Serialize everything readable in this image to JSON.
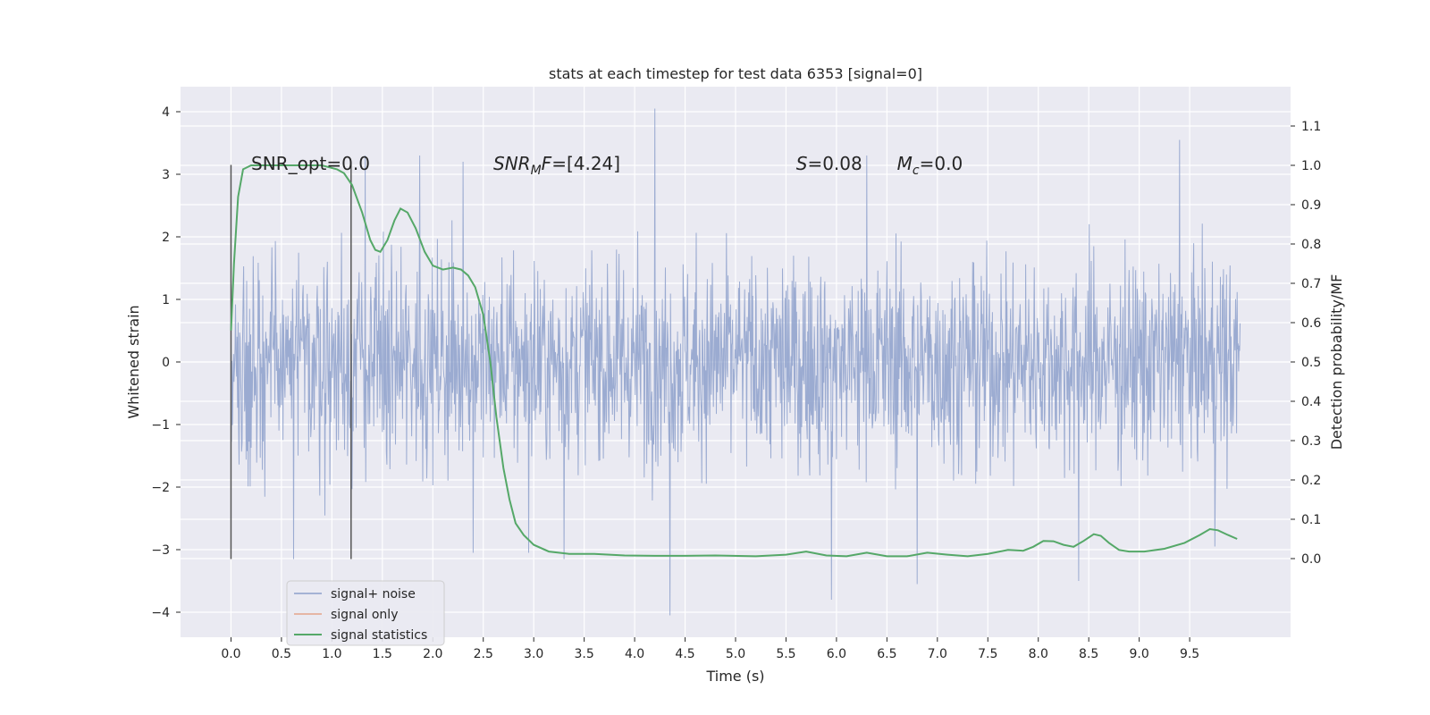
{
  "chart_data": {
    "type": "line",
    "title": "stats at each timestep for test data 6353 [signal=0]",
    "xlabel": "Time (s)",
    "ylabel": "Whitened strain",
    "y2label": "Detection probability/MF",
    "xlim": [
      -0.5,
      10.5
    ],
    "ylim": [
      -4.4,
      4.4
    ],
    "y2lim": [
      -0.2,
      1.2
    ],
    "x_ticks": [
      0.0,
      0.5,
      1.0,
      1.5,
      2.0,
      2.5,
      3.0,
      3.5,
      4.0,
      4.5,
      5.0,
      5.5,
      6.0,
      6.5,
      7.0,
      7.5,
      8.0,
      8.5,
      9.0,
      9.5
    ],
    "x_tick_labels": [
      "0.0",
      "0.5",
      "1.0",
      "1.5",
      "2.0",
      "2.5",
      "3.0",
      "3.5",
      "4.0",
      "4.5",
      "5.0",
      "5.5",
      "6.0",
      "6.5",
      "7.0",
      "7.5",
      "8.0",
      "8.5",
      "9.0",
      "9.5"
    ],
    "y_ticks": [
      4,
      3,
      2,
      1,
      0,
      -1,
      -2,
      -3,
      -4
    ],
    "y_tick_labels": [
      "4",
      "3",
      "2",
      "1",
      "0",
      "−1",
      "−2",
      "−3",
      "−4"
    ],
    "y2_ticks": [
      1.1,
      1.0,
      0.9,
      0.8,
      0.7,
      0.6,
      0.5,
      0.4,
      0.3,
      0.2,
      0.1,
      0.0
    ],
    "y2_tick_labels": [
      "1.1",
      "1.0",
      "0.9",
      "0.8",
      "0.7",
      "0.6",
      "0.5",
      "0.4",
      "0.3",
      "0.2",
      "0.1",
      "0.0"
    ],
    "grid": true,
    "legend_position": "lower-left",
    "legend": [
      {
        "name": "signal+ noise",
        "color": "#8da0cb"
      },
      {
        "name": "signal only",
        "color": "#e5a58a"
      },
      {
        "name": "signal statistics",
        "color": "#55a868"
      }
    ],
    "annotations": [
      {
        "parts": [
          {
            "text": "SNR_opt=0.0",
            "italic": false
          }
        ],
        "x": 0.2,
        "y": 3.2
      },
      {
        "parts": [
          {
            "text": "SNR",
            "italic": true
          },
          {
            "text": "M",
            "italic": true,
            "sub": true
          },
          {
            "text": "F",
            "italic": true
          },
          {
            "text": "=[4.24]",
            "italic": false
          }
        ],
        "x": 2.6,
        "y": 3.2
      },
      {
        "parts": [
          {
            "text": "S",
            "italic": true
          },
          {
            "text": "=0.08",
            "italic": false
          }
        ],
        "x": 5.6,
        "y": 3.2
      },
      {
        "parts": [
          {
            "text": "M",
            "italic": true
          },
          {
            "text": "c",
            "italic": true,
            "sub": true
          },
          {
            "text": "=0.0",
            "italic": false
          }
        ],
        "x": 6.6,
        "y": 3.2
      }
    ],
    "vlines": [
      {
        "x": 0.0,
        "ymin": -3.15,
        "ymax": 3.15
      },
      {
        "x": 1.19,
        "ymin": -3.15,
        "ymax": 3.15
      }
    ],
    "series": [
      {
        "name": "signal+ noise",
        "color": "#8da0cb",
        "x_range": [
          0.0,
          10.0
        ],
        "band_typical": [
          -1.3,
          1.3
        ],
        "extremes": [
          {
            "x": 0.62,
            "y": -3.15
          },
          {
            "x": 1.33,
            "y": 3.3
          },
          {
            "x": 1.87,
            "y": 3.3
          },
          {
            "x": 2.3,
            "y": 3.2
          },
          {
            "x": 2.4,
            "y": -3.05
          },
          {
            "x": 2.95,
            "y": -3.05
          },
          {
            "x": 3.3,
            "y": -3.15
          },
          {
            "x": 4.2,
            "y": 4.05
          },
          {
            "x": 4.35,
            "y": -4.05
          },
          {
            "x": 5.95,
            "y": -3.8
          },
          {
            "x": 6.3,
            "y": 3.3
          },
          {
            "x": 6.8,
            "y": -3.55
          },
          {
            "x": 8.4,
            "y": -3.5
          },
          {
            "x": 9.4,
            "y": 3.55
          },
          {
            "x": 9.75,
            "y": -2.95
          }
        ]
      },
      {
        "name": "signal statistics",
        "color": "#55a868",
        "axis": "right",
        "x": [
          0.0,
          0.03,
          0.07,
          0.12,
          0.2,
          0.35,
          0.6,
          0.9,
          1.05,
          1.12,
          1.2,
          1.3,
          1.38,
          1.43,
          1.48,
          1.55,
          1.62,
          1.68,
          1.75,
          1.83,
          1.92,
          2.0,
          2.1,
          2.2,
          2.28,
          2.35,
          2.42,
          2.5,
          2.57,
          2.63,
          2.7,
          2.76,
          2.82,
          2.9,
          3.0,
          3.15,
          3.35,
          3.6,
          3.9,
          4.2,
          4.5,
          4.8,
          5.2,
          5.5,
          5.7,
          5.9,
          6.1,
          6.3,
          6.5,
          6.7,
          6.9,
          7.1,
          7.3,
          7.5,
          7.7,
          7.85,
          7.95,
          8.05,
          8.15,
          8.25,
          8.35,
          8.45,
          8.55,
          8.62,
          8.7,
          8.8,
          8.9,
          9.05,
          9.25,
          9.45,
          9.6,
          9.7,
          9.78,
          9.88,
          9.97
        ],
        "y": [
          0.58,
          0.75,
          0.92,
          0.99,
          1.0,
          1.0,
          1.0,
          1.0,
          0.99,
          0.98,
          0.95,
          0.88,
          0.81,
          0.785,
          0.78,
          0.81,
          0.86,
          0.89,
          0.88,
          0.84,
          0.78,
          0.745,
          0.735,
          0.74,
          0.735,
          0.72,
          0.69,
          0.62,
          0.5,
          0.36,
          0.23,
          0.15,
          0.09,
          0.06,
          0.035,
          0.018,
          0.012,
          0.012,
          0.008,
          0.007,
          0.007,
          0.008,
          0.006,
          0.01,
          0.018,
          0.008,
          0.006,
          0.015,
          0.006,
          0.006,
          0.015,
          0.01,
          0.006,
          0.012,
          0.022,
          0.02,
          0.03,
          0.045,
          0.044,
          0.035,
          0.03,
          0.045,
          0.062,
          0.058,
          0.04,
          0.022,
          0.018,
          0.018,
          0.025,
          0.04,
          0.06,
          0.075,
          0.072,
          0.06,
          0.05
        ]
      }
    ]
  }
}
